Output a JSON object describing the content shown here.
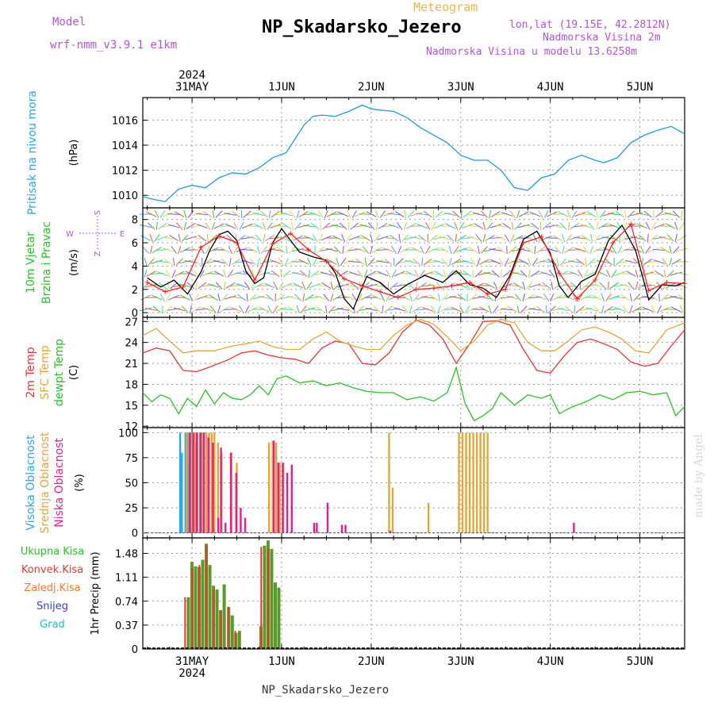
{
  "header": {
    "title": "NP_Skadarsko_Jezero",
    "subtitle": "Meteogram",
    "model_label": "Model",
    "model_name": "wrf-nmm_v3.9.1 e1km",
    "coords": "lon,lat (19.15E, 42.2812N)",
    "altitude_station": "Nadmorska Visina 2m",
    "altitude_model": "Nadmorska Visina u modelu 13.6258m",
    "footer": "NP_Skadarsko_Jezero",
    "watermark": "made by Angel"
  },
  "chart_data": {
    "type": "line",
    "time": {
      "unit": "days from 31MAY 2024 00UTC",
      "range": [
        -0.55,
        5.5
      ],
      "top_year": "2024",
      "bottom_year": "2024",
      "day_ticks": [
        {
          "label": "31MAY",
          "x": 0
        },
        {
          "label": "1JUN",
          "x": 1
        },
        {
          "label": "2JUN",
          "x": 2
        },
        {
          "label": "3JUN",
          "x": 3
        },
        {
          "label": "4JUN",
          "x": 4
        },
        {
          "label": "5JUN",
          "x": 5
        }
      ],
      "grid": true
    },
    "panels": [
      {
        "name": "pressure",
        "ylabels": [
          {
            "text": "Pritisak na nivou mora",
            "color": "#2aa6e8"
          }
        ],
        "unit": "(hPa)",
        "ylim": [
          1009,
          1017.8
        ],
        "yticks": [
          1010,
          1012,
          1014,
          1016
        ],
        "series": [
          {
            "color": "#1a9ee0",
            "x": [
              -0.55,
              -0.45,
              -0.3,
              -0.15,
              0,
              0.15,
              0.3,
              0.45,
              0.6,
              0.75,
              0.9,
              1.05,
              1.15,
              1.25,
              1.35,
              1.45,
              1.6,
              1.75,
              1.9,
              2.0,
              2.1,
              2.25,
              2.4,
              2.55,
              2.7,
              2.85,
              3.0,
              3.15,
              3.3,
              3.45,
              3.6,
              3.75,
              3.9,
              4.05,
              4.2,
              4.35,
              4.5,
              4.6,
              4.75,
              4.9,
              5.05,
              5.2,
              5.35,
              5.5
            ],
            "y": [
              1009.9,
              1009.7,
              1009.5,
              1010.5,
              1010.8,
              1010.6,
              1011.4,
              1011.8,
              1011.7,
              1012.2,
              1013.0,
              1013.4,
              1014.5,
              1015.6,
              1016.3,
              1016.4,
              1016.3,
              1016.7,
              1017.2,
              1016.9,
              1016.8,
              1016.7,
              1016.2,
              1015.4,
              1014.8,
              1014.2,
              1013.2,
              1012.8,
              1012.8,
              1012.0,
              1010.6,
              1010.4,
              1011.4,
              1011.7,
              1012.8,
              1013.2,
              1012.8,
              1012.6,
              1013.0,
              1014.2,
              1014.8,
              1015.2,
              1015.5,
              1014.9
            ]
          }
        ]
      },
      {
        "name": "wind",
        "ylabels": [
          {
            "text": "10m Vjetar",
            "color": "#22c522"
          },
          {
            "text": "Brzina i Pravac",
            "color": "#22c522"
          }
        ],
        "unit": "(m/s)",
        "compass": {
          "north": "S",
          "south": "Z",
          "west": "W",
          "east": "E"
        },
        "ylim": [
          -0.4,
          9
        ],
        "yticks": [
          0,
          2,
          4,
          6,
          8
        ],
        "series": [
          {
            "name": "",
            "color": "#000000",
            "x": [
              -0.5,
              -0.35,
              -0.2,
              -0.05,
              0.1,
              0.2,
              0.3,
              0.4,
              0.5,
              0.6,
              0.7,
              0.8,
              0.9,
              1.0,
              1.1,
              1.2,
              1.35,
              1.5,
              1.6,
              1.7,
              1.8,
              1.95,
              2.1,
              2.25,
              2.4,
              2.6,
              2.8,
              2.95,
              3.1,
              3.25,
              3.4,
              3.55,
              3.7,
              3.85,
              4.0,
              4.1,
              4.2,
              4.35,
              4.5,
              4.65,
              4.8,
              4.95,
              5.1,
              5.25,
              5.4,
              5.5
            ],
            "y": [
              3,
              2.2,
              2.8,
              1.6,
              3.5,
              5.4,
              6.7,
              7.0,
              6.2,
              3.6,
              2.5,
              3.0,
              6.0,
              7.2,
              6.2,
              5.2,
              4.8,
              4.5,
              3.4,
              1.2,
              0.3,
              3.1,
              2.6,
              1.6,
              2.4,
              3.2,
              2.6,
              3.6,
              2.4,
              2.1,
              1.3,
              3.2,
              6.3,
              7.0,
              5.1,
              2.3,
              1.3,
              2.7,
              3.3,
              6.2,
              7.5,
              5.4,
              1.1,
              2.4,
              2.3,
              2.6
            ]
          },
          {
            "name": "",
            "color": "#ff2222",
            "x": [
              -0.5,
              -0.3,
              -0.1,
              0.1,
              0.3,
              0.5,
              0.7,
              0.9,
              1.1,
              1.3,
              1.5,
              1.7,
              1.9,
              2.1,
              2.3,
              2.5,
              2.7,
              2.9,
              3.1,
              3.3,
              3.5,
              3.7,
              3.9,
              4.1,
              4.3,
              4.5,
              4.7,
              4.9,
              5.1,
              5.3,
              5.5
            ],
            "y": [
              2.6,
              1.8,
              2.2,
              5.6,
              6.6,
              6.0,
              2.8,
              5.9,
              6.8,
              5.4,
              4.4,
              2.9,
              2.3,
              1.8,
              1.3,
              2.0,
              2.1,
              2.3,
              2.6,
              1.6,
              2.0,
              6.0,
              6.5,
              3.4,
              1.2,
              2.8,
              6.0,
              7.6,
              1.9,
              2.6,
              2.5
            ]
          }
        ]
      },
      {
        "name": "temperature",
        "ylabels": [
          {
            "text": "2m Temp",
            "color": "#ee3333"
          },
          {
            "text": "SFC Temp",
            "color": "#e8a33a"
          },
          {
            "text": "dewpt Temp",
            "color": "#22c522"
          }
        ],
        "unit": "(C)",
        "ylim": [
          11.8,
          27.6
        ],
        "yticks": [
          12,
          15,
          18,
          21,
          24,
          27
        ],
        "series": [
          {
            "name": "2m Temp",
            "color": "#ee3333",
            "x": [
              -0.55,
              -0.4,
              -0.25,
              -0.1,
              0.05,
              0.2,
              0.4,
              0.55,
              0.7,
              0.85,
              1.0,
              1.15,
              1.3,
              1.45,
              1.6,
              1.75,
              1.9,
              2.05,
              2.2,
              2.35,
              2.5,
              2.65,
              2.8,
              2.95,
              3.1,
              3.25,
              3.4,
              3.55,
              3.7,
              3.85,
              4.0,
              4.15,
              4.3,
              4.45,
              4.6,
              4.75,
              4.9,
              5.05,
              5.2,
              5.35,
              5.5
            ],
            "y": [
              22.5,
              23.2,
              22.8,
              20.0,
              19.8,
              20.5,
              21.5,
              22.5,
              22.8,
              22.2,
              21.8,
              21.6,
              21.0,
              23.2,
              24.2,
              23.8,
              21.0,
              20.8,
              22.5,
              25.5,
              27.2,
              26.5,
              24.5,
              21.0,
              23.8,
              27.0,
              27.1,
              26.5,
              23.0,
              20.0,
              19.6,
              22.0,
              24.0,
              24.5,
              23.8,
              23.0,
              21.2,
              20.6,
              21.0,
              23.5,
              25.8
            ]
          },
          {
            "name": "SFC Temp",
            "color": "#e0a838",
            "x": [
              -0.55,
              -0.4,
              -0.25,
              -0.1,
              0.05,
              0.25,
              0.45,
              0.6,
              0.75,
              0.9,
              1.05,
              1.2,
              1.35,
              1.5,
              1.65,
              1.8,
              1.95,
              2.1,
              2.25,
              2.4,
              2.55,
              2.7,
              2.85,
              3.0,
              3.15,
              3.3,
              3.45,
              3.6,
              3.75,
              3.9,
              4.05,
              4.2,
              4.35,
              4.5,
              4.65,
              4.8,
              4.95,
              5.1,
              5.3,
              5.5
            ],
            "y": [
              25.0,
              26.0,
              24.2,
              22.5,
              22.8,
              22.8,
              23.5,
              23.8,
              24.2,
              23.4,
              23.0,
              23.0,
              24.5,
              25.5,
              24.2,
              23.5,
              23.0,
              23.0,
              25.0,
              26.5,
              27.3,
              26.6,
              24.8,
              22.8,
              24.2,
              26.5,
              27.3,
              26.8,
              24.0,
              22.8,
              22.8,
              24.2,
              25.8,
              26.2,
              25.5,
              24.5,
              22.8,
              22.5,
              25.8,
              26.8
            ]
          },
          {
            "name": "dewpt Temp",
            "color": "#22c522",
            "x": [
              -0.55,
              -0.45,
              -0.35,
              -0.25,
              -0.15,
              -0.05,
              0.05,
              0.15,
              0.25,
              0.35,
              0.45,
              0.55,
              0.65,
              0.75,
              0.85,
              0.95,
              1.05,
              1.2,
              1.35,
              1.5,
              1.65,
              1.8,
              1.95,
              2.1,
              2.25,
              2.4,
              2.55,
              2.7,
              2.85,
              2.95,
              3.05,
              3.15,
              3.25,
              3.35,
              3.45,
              3.6,
              3.75,
              3.9,
              4.0,
              4.1,
              4.25,
              4.4,
              4.55,
              4.7,
              4.85,
              5.0,
              5.15,
              5.3,
              5.4,
              5.5
            ],
            "y": [
              16.8,
              15.5,
              16.5,
              16.0,
              13.8,
              16.0,
              14.8,
              17.2,
              15.2,
              16.8,
              16.0,
              15.8,
              16.5,
              17.8,
              16.5,
              18.8,
              19.2,
              18.2,
              18.5,
              17.8,
              18.2,
              17.5,
              17.0,
              16.8,
              16.8,
              15.8,
              16.2,
              15.6,
              16.8,
              20.4,
              15.2,
              12.8,
              13.5,
              14.5,
              16.8,
              15.0,
              16.5,
              16.0,
              16.5,
              13.8,
              14.8,
              15.5,
              16.5,
              15.8,
              16.8,
              17.0,
              16.5,
              16.8,
              13.5,
              14.8
            ]
          }
        ]
      },
      {
        "name": "clouds",
        "ylabels": [
          {
            "text": "Visoka Oblacnost",
            "color": "#2aa6e8"
          },
          {
            "text": "Srednja Oblacnost",
            "color": "#e8a33a"
          },
          {
            "text": "Niska Oblacnost",
            "color": "#e0208e"
          }
        ],
        "unit": "(%)",
        "ylim": [
          -5,
          105
        ],
        "yticks": [
          0,
          25,
          50,
          75,
          100
        ],
        "series": [
          {
            "name": "Visoka Oblacnost",
            "color": "#2aa6e8",
            "x": [
              -0.12,
              -0.1,
              -0.06,
              -0.04,
              -0.02,
              0.0,
              0.02,
              0.04,
              0.06,
              0.12,
              0.14
            ],
            "y": [
              100,
              80,
              100,
              100,
              70,
              100,
              85,
              100,
              90,
              100,
              100
            ]
          },
          {
            "name": "Srednja Oblacnost",
            "color": "#e0a838",
            "x": [
              -0.06,
              -0.03,
              0.0,
              0.03,
              0.06,
              0.09,
              0.12,
              0.16,
              0.19,
              0.22,
              0.25,
              0.29,
              0.33,
              0.44,
              0.5,
              0.86,
              0.9,
              0.94,
              0.98,
              1.02,
              2.2,
              2.24,
              2.64,
              2.98,
              3.02,
              3.06,
              3.1,
              3.14,
              3.18,
              3.22,
              3.26,
              3.3
            ],
            "y": [
              100,
              100,
              100,
              100,
              100,
              100,
              100,
              100,
              100,
              100,
              100,
              90,
              80,
              80,
              70,
              90,
              92,
              90,
              70,
              70,
              100,
              45,
              30,
              100,
              100,
              100,
              100,
              100,
              100,
              100,
              100,
              100
            ]
          },
          {
            "name": "Niska Oblacnost",
            "color": "#e0208e",
            "x": [
              -0.04,
              0.0,
              0.04,
              0.08,
              0.12,
              0.17,
              0.22,
              0.28,
              0.31,
              0.36,
              0.42,
              0.48,
              0.53,
              0.58,
              0.9,
              0.95,
              1.0,
              1.05,
              1.1,
              1.35,
              1.38,
              1.5,
              1.66,
              1.7,
              2.2,
              4.25
            ],
            "y": [
              100,
              100,
              100,
              100,
              100,
              95,
              90,
              15,
              85,
              10,
              80,
              60,
              25,
              15,
              92,
              70,
              70,
              60,
              68,
              10,
              10,
              30,
              8,
              8,
              2,
              10
            ]
          }
        ]
      },
      {
        "name": "precipitation",
        "ylabels": [
          {
            "text": "Ukupna Kisa",
            "color": "#22c522"
          },
          {
            "text": "Konvek.Kisa",
            "color": "#ee3333"
          },
          {
            "text": "Zaledj.Kisa",
            "color": "#f07a2a"
          },
          {
            "text": "Snijeg",
            "color": "#3a3ae8"
          },
          {
            "text": "Grad",
            "color": "#22bfbf"
          }
        ],
        "unit": "1hr Precip (mm)",
        "ylim": [
          0,
          1.72
        ],
        "yticks": [
          0,
          0.37,
          0.74,
          1.11,
          1.48
        ],
        "series": [
          {
            "name": "Ukupna Kisa",
            "color": "#5a9a2a",
            "x": [
              -0.05,
              -0.01,
              0.03,
              0.07,
              0.11,
              0.15,
              0.19,
              0.23,
              0.27,
              0.31,
              0.35,
              0.4,
              0.44,
              0.48,
              0.52,
              0.76,
              0.8,
              0.84,
              0.88,
              0.92,
              0.96,
              1.5
            ],
            "y": [
              0.8,
              1.35,
              1.28,
              1.27,
              1.38,
              1.63,
              1.3,
              0.98,
              0.92,
              0.6,
              1.0,
              0.65,
              0.52,
              0.25,
              0.28,
              0.35,
              1.6,
              1.68,
              1.55,
              1.03,
              0.95,
              0.02
            ]
          },
          {
            "name": "Konvek.Kisa",
            "color": "#ee3333",
            "x": [
              -0.06,
              0.02,
              0.1,
              0.18,
              0.26,
              0.34,
              0.42,
              0.5,
              0.79,
              0.87
            ],
            "y": [
              0.8,
              1.25,
              1.3,
              1.62,
              0.92,
              0.6,
              0.65,
              0.28,
              1.58,
              1.55
            ]
          }
        ]
      }
    ]
  }
}
